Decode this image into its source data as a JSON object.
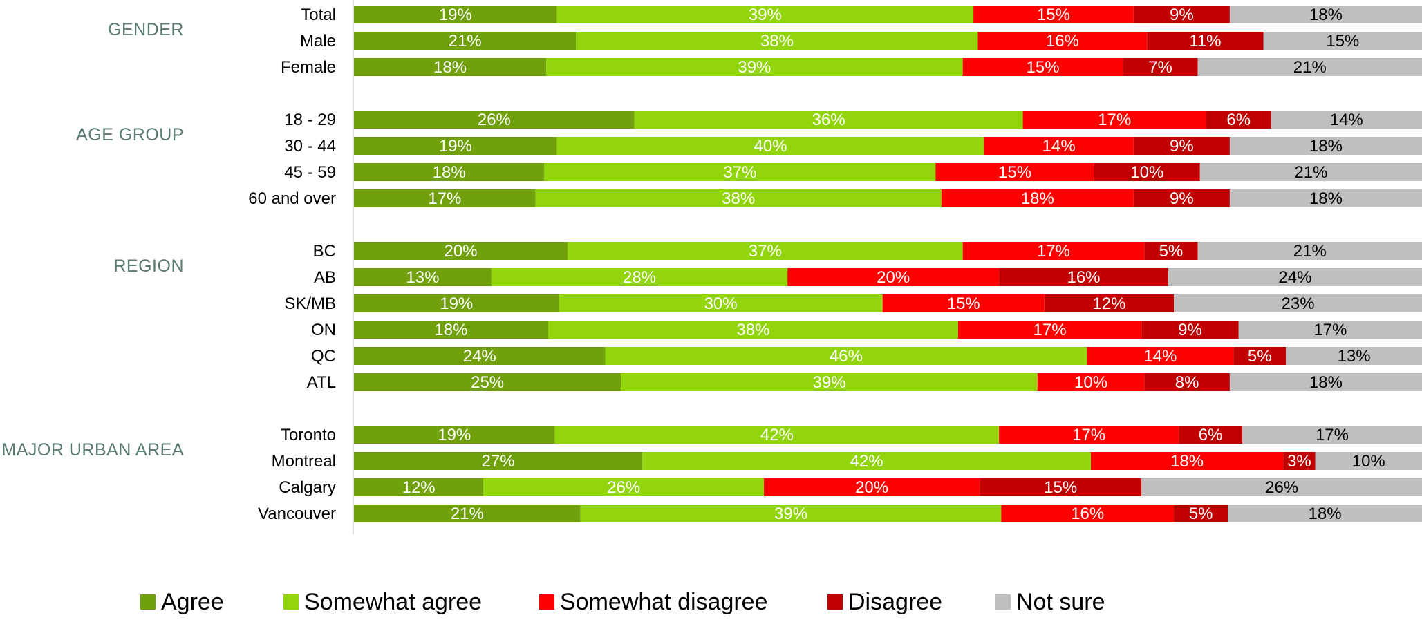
{
  "chart_data": {
    "type": "bar",
    "orientation": "horizontal",
    "stacked": true,
    "normalized": true,
    "legend_position": "bottom",
    "grid": false,
    "series": [
      {
        "name": "Agree",
        "color": "#70a00c"
      },
      {
        "name": "Somewhat agree",
        "color": "#92d50c"
      },
      {
        "name": "Somewhat disagree",
        "color": "#ff0000"
      },
      {
        "name": "Disagree",
        "color": "#c00000"
      },
      {
        "name": "Not sure",
        "color": "#bfbfbf"
      }
    ],
    "groups": [
      {
        "name": "GENDER",
        "rows": [
          {
            "label": "Total",
            "values": [
              19,
              39,
              15,
              9,
              18
            ]
          },
          {
            "label": "Male",
            "values": [
              21,
              38,
              16,
              11,
              15
            ]
          },
          {
            "label": "Female",
            "values": [
              18,
              39,
              15,
              7,
              21
            ]
          }
        ]
      },
      {
        "name": "AGE GROUP",
        "rows": [
          {
            "label": "18 - 29",
            "values": [
              26,
              36,
              17,
              6,
              14
            ]
          },
          {
            "label": "30 - 44",
            "values": [
              19,
              40,
              14,
              9,
              18
            ]
          },
          {
            "label": "45 - 59",
            "values": [
              18,
              37,
              15,
              10,
              21
            ]
          },
          {
            "label": "60 and over",
            "values": [
              17,
              38,
              18,
              9,
              18
            ]
          }
        ]
      },
      {
        "name": "REGION",
        "rows": [
          {
            "label": "BC",
            "values": [
              20,
              37,
              17,
              5,
              21
            ]
          },
          {
            "label": "AB",
            "values": [
              13,
              28,
              20,
              16,
              24
            ]
          },
          {
            "label": "SK/MB",
            "values": [
              19,
              30,
              15,
              12,
              23
            ]
          },
          {
            "label": "ON",
            "values": [
              18,
              38,
              17,
              9,
              17
            ]
          },
          {
            "label": "QC",
            "values": [
              24,
              46,
              14,
              5,
              13
            ]
          },
          {
            "label": "ATL",
            "values": [
              25,
              39,
              10,
              8,
              18
            ]
          }
        ]
      },
      {
        "name": "MAJOR URBAN AREA",
        "rows": [
          {
            "label": "Toronto",
            "values": [
              19,
              42,
              17,
              6,
              17
            ]
          },
          {
            "label": "Montreal",
            "values": [
              27,
              42,
              18,
              3,
              10
            ]
          },
          {
            "label": "Calgary",
            "values": [
              12,
              26,
              20,
              15,
              26
            ]
          },
          {
            "label": "Vancouver",
            "values": [
              21,
              39,
              16,
              5,
              18
            ]
          }
        ]
      }
    ]
  }
}
